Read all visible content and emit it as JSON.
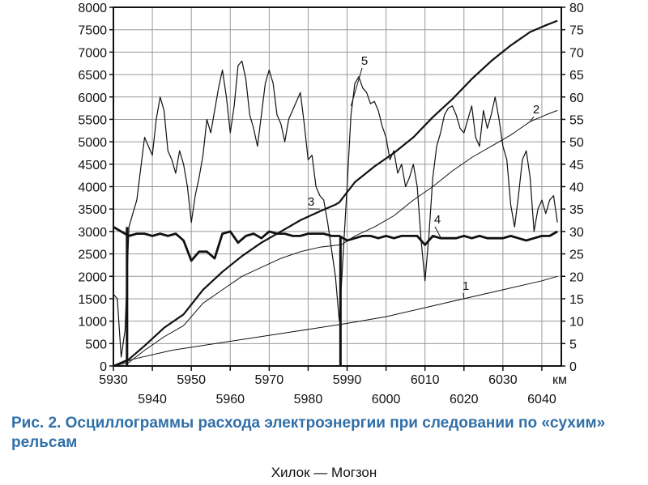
{
  "chart_data": {
    "type": "line",
    "xlabel": "км",
    "x_ticks_top": [
      "5930",
      "5950",
      "5970",
      "5990",
      "6010",
      "6030"
    ],
    "x_ticks_bottom": [
      "5940",
      "5960",
      "5980",
      "6000",
      "6020",
      "6040"
    ],
    "xlim": [
      5930,
      6045
    ],
    "ylim_left": [
      0,
      8000
    ],
    "ylim_right": [
      0,
      80
    ],
    "y_ticks_left": [
      "0",
      "500",
      "1000",
      "1500",
      "2000",
      "2500",
      "3000",
      "3500",
      "4000",
      "4500",
      "5000",
      "5500",
      "6000",
      "6500",
      "7000",
      "7500",
      "8000"
    ],
    "y_ticks_right": [
      "0",
      "5",
      "10",
      "15",
      "20",
      "25",
      "30",
      "35",
      "40",
      "45",
      "50",
      "55",
      "60",
      "65",
      "70",
      "75",
      "80"
    ],
    "grid": true,
    "series": [
      {
        "name": "1",
        "width": 1,
        "x": [
          5930,
          5935,
          5945,
          5960,
          5975,
          5990,
          6000,
          6010,
          6020,
          6030,
          6040,
          6044
        ],
        "y": [
          0,
          150,
          350,
          550,
          750,
          950,
          1100,
          1300,
          1500,
          1700,
          1900,
          2000
        ]
      },
      {
        "name": "2",
        "width": 1,
        "x": [
          5930,
          5934,
          5938,
          5943,
          5948,
          5953,
          5958,
          5963,
          5968,
          5973,
          5978,
          5983,
          5988,
          5988.5,
          5992,
          5997,
          6002,
          6007,
          6012,
          6017,
          6022,
          6027,
          6032,
          6037,
          6041,
          6044
        ],
        "y": [
          0,
          80,
          350,
          650,
          900,
          1400,
          1700,
          2000,
          2200,
          2400,
          2550,
          2650,
          2700,
          2700,
          2900,
          3100,
          3350,
          3700,
          4000,
          4350,
          4650,
          4900,
          5150,
          5450,
          5600,
          5700
        ]
      },
      {
        "name": "3",
        "width": 2.2,
        "x": [
          5930,
          5934,
          5938,
          5943,
          5948,
          5953,
          5958,
          5963,
          5968,
          5973,
          5978,
          5983,
          5987,
          5988,
          5992,
          5997,
          6002,
          6007,
          6012,
          6017,
          6022,
          6027,
          6032,
          6037,
          6041,
          6044
        ],
        "y": [
          0,
          150,
          450,
          850,
          1150,
          1700,
          2100,
          2450,
          2750,
          3000,
          3250,
          3450,
          3600,
          3650,
          4100,
          4450,
          4750,
          5100,
          5550,
          5950,
          6400,
          6800,
          7150,
          7450,
          7600,
          7700
        ]
      },
      {
        "name": "4",
        "width": 2.8,
        "x": [
          5930,
          5932,
          5934,
          5936,
          5938,
          5940,
          5942,
          5944,
          5946,
          5948,
          5950,
          5952,
          5954,
          5956,
          5958,
          5960,
          5962,
          5964,
          5966,
          5968,
          5970,
          5972,
          5974,
          5976,
          5978,
          5980,
          5982,
          5984,
          5986,
          5988,
          5990,
          5992,
          5994,
          5996,
          5998,
          6000,
          6002,
          6004,
          6006,
          6008,
          6010,
          6012,
          6014,
          6016,
          6018,
          6020,
          6022,
          6024,
          6026,
          6028,
          6030,
          6032,
          6034,
          6036,
          6038,
          6040,
          6042,
          6044
        ],
        "y": [
          3100,
          3000,
          2900,
          2950,
          2950,
          2900,
          2950,
          2900,
          2950,
          2800,
          2350,
          2550,
          2550,
          2400,
          2950,
          3000,
          2750,
          2900,
          2950,
          2850,
          3000,
          2950,
          2950,
          2900,
          2900,
          2950,
          2950,
          2950,
          2900,
          2900,
          2800,
          2850,
          2900,
          2900,
          2850,
          2900,
          2850,
          2900,
          2900,
          2900,
          2700,
          2900,
          2850,
          2850,
          2850,
          2900,
          2850,
          2900,
          2850,
          2850,
          2850,
          2900,
          2850,
          2800,
          2850,
          2900,
          2900,
          3000
        ]
      },
      {
        "name": "5",
        "width": 1.2,
        "x": [
          5930,
          5931,
          5932,
          5933,
          5934,
          5935,
          5936,
          5937,
          5938,
          5939,
          5940,
          5941,
          5942,
          5943,
          5944,
          5945,
          5946,
          5947,
          5948,
          5949,
          5950,
          5951,
          5952,
          5953,
          5954,
          5955,
          5956,
          5957,
          5958,
          5959,
          5960,
          5961,
          5962,
          5963,
          5964,
          5965,
          5966,
          5967,
          5968,
          5969,
          5970,
          5971,
          5972,
          5973,
          5974,
          5975,
          5976,
          5977,
          5978,
          5979,
          5980,
          5981,
          5982,
          5983,
          5984,
          5985,
          5986,
          5987,
          5988,
          5989,
          5990,
          5991,
          5992,
          5993,
          5994,
          5995,
          5996,
          5997,
          5998,
          5999,
          6000,
          6001,
          6002,
          6003,
          6004,
          6005,
          6006,
          6007,
          6008,
          6009,
          6010,
          6011,
          6012,
          6013,
          6014,
          6015,
          6016,
          6017,
          6018,
          6019,
          6020,
          6021,
          6022,
          6023,
          6024,
          6025,
          6026,
          6027,
          6028,
          6029,
          6030,
          6031,
          6032,
          6033,
          6034,
          6035,
          6036,
          6037,
          6038,
          6039,
          6040,
          6041,
          6042,
          6043,
          6044
        ],
        "y": [
          1600,
          1500,
          200,
          800,
          3100,
          3400,
          3700,
          4400,
          5100,
          4900,
          4700,
          5500,
          6000,
          5700,
          4800,
          4600,
          4300,
          4800,
          4500,
          4000,
          3200,
          3800,
          4200,
          4700,
          5500,
          5200,
          5700,
          6200,
          6600,
          6000,
          5200,
          5800,
          6700,
          6800,
          6400,
          5600,
          5300,
          4900,
          5600,
          6300,
          6600,
          6300,
          5600,
          5400,
          5000,
          5500,
          5700,
          5900,
          6100,
          5400,
          4600,
          4700,
          4000,
          3800,
          3700,
          3200,
          2600,
          2000,
          1000,
          2500,
          4000,
          5600,
          6300,
          6450,
          6200,
          6100,
          5850,
          5900,
          5700,
          5350,
          5100,
          4600,
          4800,
          4300,
          4500,
          4000,
          4200,
          4500,
          4000,
          2800,
          1900,
          2900,
          4200,
          4900,
          5200,
          5600,
          5750,
          5800,
          5600,
          5300,
          5200,
          5500,
          5800,
          5100,
          4900,
          5700,
          5300,
          5600,
          6000,
          5500,
          4900,
          4600,
          3600,
          3100,
          3800,
          4600,
          4800,
          4200,
          3000,
          3500,
          3700,
          3400,
          3700,
          3800,
          3200
        ]
      }
    ]
  },
  "caption": "Рис. 2. Осциллограммы расхода электроэнергии при следовании по «сухим» рельсам",
  "route_title": "Хилок — Могзон",
  "colors": {
    "axis": "#111111",
    "grid": "#9a9a9a",
    "line": "#111111",
    "caption": "#2f6fa8"
  }
}
